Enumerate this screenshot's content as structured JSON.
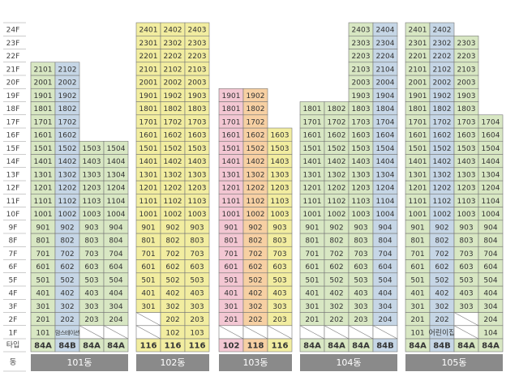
{
  "floors": [
    "1F",
    "2F",
    "3F",
    "4F",
    "5F",
    "6F",
    "7F",
    "8F",
    "9F",
    "10F",
    "11F",
    "12F",
    "13F",
    "14F",
    "15F",
    "16F",
    "17F",
    "18F",
    "19F",
    "20F",
    "21F",
    "22F",
    "23F",
    "24F"
  ],
  "type_header": "타입",
  "building_header": "동",
  "buildings": [
    {
      "name": "101동",
      "columns": [
        {
          "type": "84A",
          "color": "#d8e7c3",
          "units": [
            "101",
            "201",
            "301",
            "401",
            "501",
            "601",
            "701",
            "801",
            "901",
            "1001",
            "1101",
            "1201",
            "1301",
            "1401",
            "1501",
            "1601",
            "1701",
            "1801",
            "1901",
            "2001",
            "2101"
          ]
        },
        {
          "type": "84B",
          "color": "#c6d6e6",
          "units": [
            "맘스테이션",
            "202",
            "302",
            "402",
            "502",
            "602",
            "702",
            "802",
            "902",
            "1002",
            "1102",
            "1202",
            "1302",
            "1402",
            "1502",
            "1602",
            "1702",
            "1802",
            "1902",
            "2002",
            "2102"
          ]
        },
        {
          "type": "84A",
          "color": "#d8e7c3",
          "units": [
            null,
            "203",
            "303",
            "403",
            "503",
            "603",
            "703",
            "803",
            "903",
            "1003",
            "1103",
            "1203",
            "1303",
            "1403",
            "1503"
          ]
        },
        {
          "type": "84A",
          "color": "#d8e7c3",
          "units": [
            null,
            "204",
            "304",
            "404",
            "504",
            "604",
            "704",
            "804",
            "904",
            "1004",
            "1104",
            "1204",
            "1304",
            "1404",
            "1504"
          ]
        }
      ]
    },
    {
      "name": "102동",
      "columns": [
        {
          "type": "116",
          "color": "#f2eda0",
          "units": [
            null,
            null,
            "301",
            "401",
            "501",
            "601",
            "701",
            "801",
            "901",
            "1001",
            "1101",
            "1201",
            "1301",
            "1401",
            "1501",
            "1601",
            "1701",
            "1801",
            "1901",
            "2001",
            "2101",
            "2201",
            "2301",
            "2401"
          ]
        },
        {
          "type": "116",
          "color": "#f2eda0",
          "units": [
            "102",
            "202",
            "302",
            "402",
            "502",
            "602",
            "702",
            "802",
            "902",
            "1002",
            "1102",
            "1202",
            "1302",
            "1402",
            "1502",
            "1602",
            "1702",
            "1802",
            "1902",
            "2002",
            "2102",
            "2202",
            "2302",
            "2402"
          ]
        },
        {
          "type": "116",
          "color": "#f2eda0",
          "units": [
            "103",
            "203",
            "303",
            "403",
            "503",
            "603",
            "703",
            "803",
            "903",
            "1003",
            "1103",
            "1203",
            "1303",
            "1403",
            "1503",
            "1603",
            "1703",
            "1803",
            "1903",
            "2003",
            "2103",
            "2203",
            "2303",
            "2403"
          ]
        }
      ]
    },
    {
      "name": "103동",
      "columns": [
        {
          "type": "102",
          "color": "#f3c7d3",
          "units": [
            null,
            "201",
            "301",
            "401",
            "501",
            "601",
            "701",
            "801",
            "901",
            "1001",
            "1101",
            "1201",
            "1301",
            "1401",
            "1501",
            "1601",
            "1701",
            "1801",
            "1901"
          ]
        },
        {
          "type": "118",
          "color": "#f7d0a3",
          "units": [
            null,
            "202",
            "302",
            "402",
            "502",
            "602",
            "702",
            "802",
            "902",
            "1002",
            "1102",
            "1202",
            "1302",
            "1402",
            "1502",
            "1602",
            "1702",
            "1802",
            "1902"
          ]
        },
        {
          "type": "116",
          "color": "#f2eda0",
          "units": [
            null,
            "203",
            "303",
            "403",
            "503",
            "603",
            "703",
            "803",
            "903",
            "1003",
            "1103",
            "1203",
            "1303",
            "1403",
            "1503",
            "1603"
          ]
        }
      ]
    },
    {
      "name": "104동",
      "columns": [
        {
          "type": "84A",
          "color": "#d8e7c3",
          "units": [
            null,
            "201",
            "301",
            "401",
            "501",
            "601",
            "701",
            "801",
            "901",
            "1001",
            "1101",
            "1201",
            "1301",
            "1401",
            "1501",
            "1601",
            "1701",
            "1801"
          ]
        },
        {
          "type": "84A",
          "color": "#d8e7c3",
          "units": [
            null,
            "202",
            "302",
            "402",
            "502",
            "602",
            "702",
            "802",
            "902",
            "1002",
            "1102",
            "1202",
            "1302",
            "1402",
            "1502",
            "1602",
            "1702",
            "1802"
          ]
        },
        {
          "type": "84A",
          "color": "#d8e7c3",
          "units": [
            null,
            "203",
            "303",
            "403",
            "503",
            "603",
            "703",
            "803",
            "903",
            "1003",
            "1103",
            "1203",
            "1303",
            "1403",
            "1503",
            "1603",
            "1703",
            "1803",
            "1903",
            "2003",
            "2103",
            "2203",
            "2303",
            "2403"
          ]
        },
        {
          "type": "84B",
          "color": "#c6d6e6",
          "units": [
            null,
            "204",
            "304",
            "404",
            "504",
            "604",
            "704",
            "804",
            "904",
            "1004",
            "1104",
            "1204",
            "1304",
            "1404",
            "1504",
            "1604",
            "1704",
            "1804",
            "1904",
            "2004",
            "2104",
            "2204",
            "2304",
            "2404"
          ]
        }
      ]
    },
    {
      "name": "105동",
      "columns": [
        {
          "type": "84A",
          "color": "#d8e7c3",
          "units": [
            "101",
            "201",
            "301",
            "401",
            "501",
            "601",
            "701",
            "801",
            "901",
            "1001",
            "1101",
            "1201",
            "1301",
            "1401",
            "1501",
            "1601",
            "1701",
            "1801",
            "1901",
            "2001",
            "2101",
            "2201",
            "2301",
            "2401"
          ]
        },
        {
          "type": "84B",
          "color": "#c6d6e6",
          "units": [
            "어린이집",
            "202",
            "302",
            "402",
            "502",
            "602",
            "702",
            "802",
            "902",
            "1002",
            "1102",
            "1202",
            "1302",
            "1402",
            "1502",
            "1602",
            "1702",
            "1802",
            "1902",
            "2002",
            "2102",
            "2202",
            "2302",
            "2402"
          ]
        },
        {
          "type": "84A",
          "color": "#d8e7c3",
          "units": [
            null,
            null,
            "303",
            "403",
            "503",
            "603",
            "703",
            "803",
            "903",
            "1003",
            "1103",
            "1203",
            "1303",
            "1403",
            "1503",
            "1603",
            "1703",
            "1803",
            "1903",
            "2003",
            "2103",
            "2203",
            "2303"
          ]
        },
        {
          "type": "84A",
          "color": "#d8e7c3",
          "units": [
            "104",
            "204",
            "304",
            "404",
            "504",
            "604",
            "704",
            "804",
            "904",
            "1004",
            "1104",
            "1204",
            "1304",
            "1404",
            "1504",
            "1604",
            "1704"
          ]
        }
      ]
    }
  ]
}
